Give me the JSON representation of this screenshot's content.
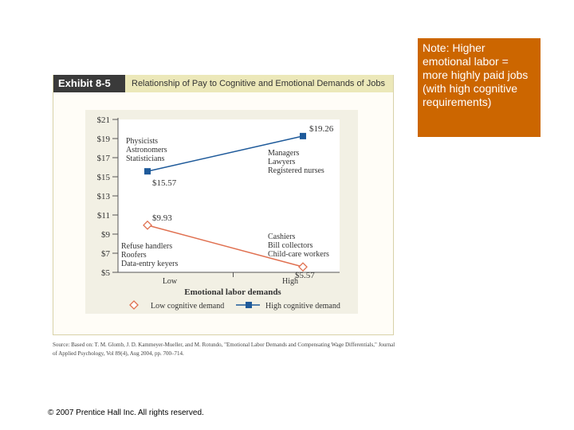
{
  "exhibit": {
    "number": "Exhibit 8-5",
    "title": "Relationship of Pay to Cognitive and Emotional Demands of Jobs"
  },
  "note": {
    "text": "Note: Higher emotional labor = more highly paid jobs (with high cognitive requirements)"
  },
  "chart_data": {
    "type": "line",
    "categories": [
      "Low",
      "High"
    ],
    "xlabel": "Emotional labor demands",
    "ylabel": "",
    "ylim": [
      5,
      21
    ],
    "yticks": [
      "$21",
      "$19",
      "$17",
      "$15",
      "$13",
      "$11",
      "$9",
      "$7",
      "$5"
    ],
    "series": [
      {
        "name": "Low cognitive demand",
        "values": [
          9.93,
          5.57
        ],
        "labels": [
          "$9.93",
          "$5.57"
        ],
        "color": "#e07050",
        "marker": "diamond-open"
      },
      {
        "name": "High cognitive demand",
        "values": [
          15.57,
          19.26
        ],
        "labels": [
          "$15.57",
          "$19.26"
        ],
        "color": "#1e5a9a",
        "marker": "square"
      }
    ],
    "annotations": {
      "high_low": [
        "Physicists",
        "Astronomers",
        "Statisticians"
      ],
      "high_high": [
        "Managers",
        "Lawyers",
        "Registered nurses"
      ],
      "low_low": [
        "Refuse handlers",
        "Roofers",
        "Data-entry keyers"
      ],
      "low_high": [
        "Cashiers",
        "Bill collectors",
        "Child-care workers"
      ]
    }
  },
  "source": {
    "text": "Source: Based on: T. M. Glomb, J. D. Kammeyer-Mueller, and M. Rotundo, \"Emotional Labor Demands and Compensating Wage Differentials,\" Journal of Applied Psychology, Vol 89(4), Aug 2004, pp. 700–714."
  },
  "footer": {
    "copyright": "© 2007 Prentice Hall Inc. All rights reserved."
  }
}
